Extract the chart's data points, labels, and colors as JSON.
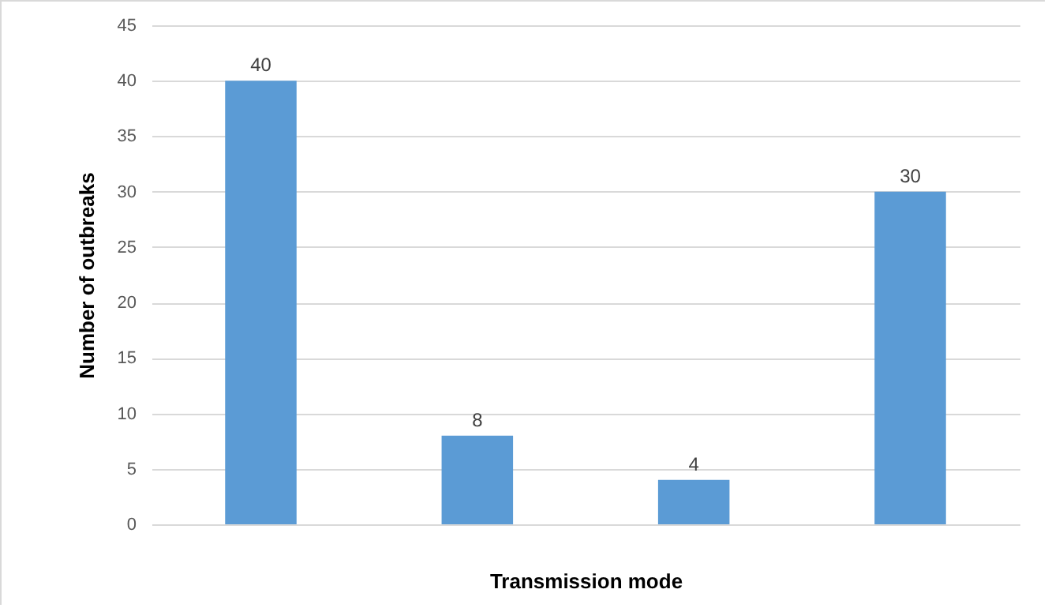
{
  "chart_data": {
    "type": "bar",
    "xlabel": "Transmission mode",
    "ylabel": "Number of outbreaks",
    "categories": [
      null,
      null,
      null,
      null
    ],
    "values": [
      40,
      8,
      4,
      30
    ],
    "color": "#5b9bd5",
    "ylim": [
      0,
      45
    ],
    "yticks": [
      0,
      5,
      10,
      15,
      20,
      25,
      30,
      35,
      40,
      45
    ],
    "grid": "y",
    "data_labels": true,
    "tick_labels": "y"
  }
}
